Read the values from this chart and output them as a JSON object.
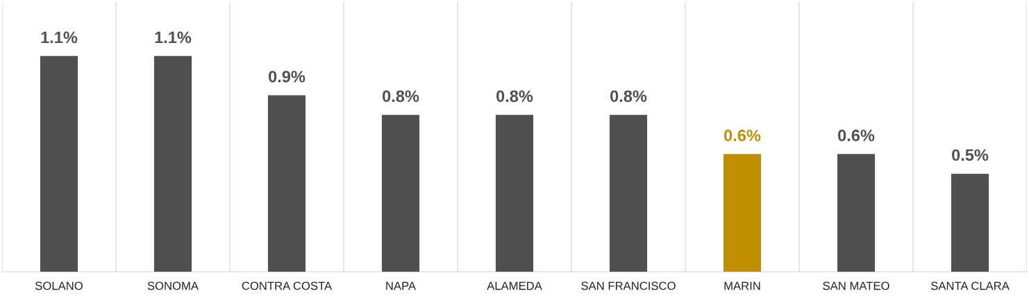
{
  "chart_data": {
    "type": "bar",
    "categories": [
      "SOLANO",
      "SONOMA",
      "CONTRA COSTA",
      "NAPA",
      "ALAMEDA",
      "SAN FRANCISCO",
      "MARIN",
      "SAN MATEO",
      "SANTA CLARA"
    ],
    "values": [
      1.1,
      1.1,
      0.9,
      0.8,
      0.8,
      0.8,
      0.6,
      0.6,
      0.5
    ],
    "value_labels": [
      "1.1%",
      "1.1%",
      "0.9%",
      "0.8%",
      "0.8%",
      "0.8%",
      "0.6%",
      "0.6%",
      "0.5%"
    ],
    "colors": [
      "#505050",
      "#505050",
      "#505050",
      "#505050",
      "#505050",
      "#505050",
      "#bf8f00",
      "#505050",
      "#505050"
    ],
    "grid": "x"
  }
}
